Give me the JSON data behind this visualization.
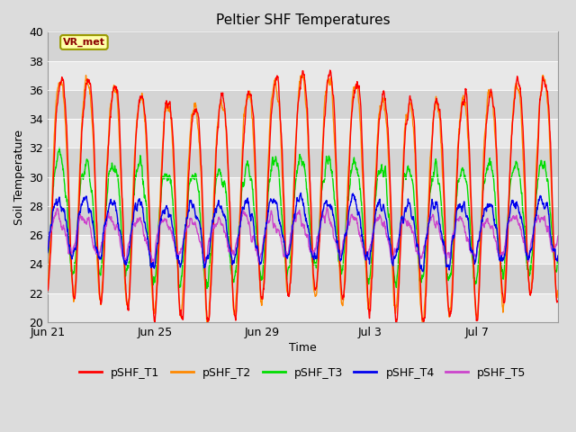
{
  "title": "Peltier SHF Temperatures",
  "xlabel": "Time",
  "ylabel": "Soil Temperature",
  "ylim": [
    20,
    40
  ],
  "yticks": [
    20,
    22,
    24,
    26,
    28,
    30,
    32,
    34,
    36,
    38,
    40
  ],
  "xtick_labels": [
    "Jun 21",
    "Jun 25",
    "Jun 29",
    "Jul 3",
    "Jul 7"
  ],
  "xtick_positions": [
    0,
    4,
    8,
    12,
    16
  ],
  "annotation_text": "VR_met",
  "colors": {
    "T1": "#ff0000",
    "T2": "#ff8800",
    "T3": "#00dd00",
    "T4": "#0000ee",
    "T5": "#cc44cc"
  },
  "legend_labels": [
    "pSHF_T1",
    "pSHF_T2",
    "pSHF_T3",
    "pSHF_T4",
    "pSHF_T5"
  ],
  "background_color": "#dcdcdc",
  "plot_bg_color": "#dcdcdc",
  "band_colors": [
    "#e8e8e8",
    "#d4d4d4"
  ],
  "n_days": 19,
  "points_per_day": 96,
  "seed": 42
}
